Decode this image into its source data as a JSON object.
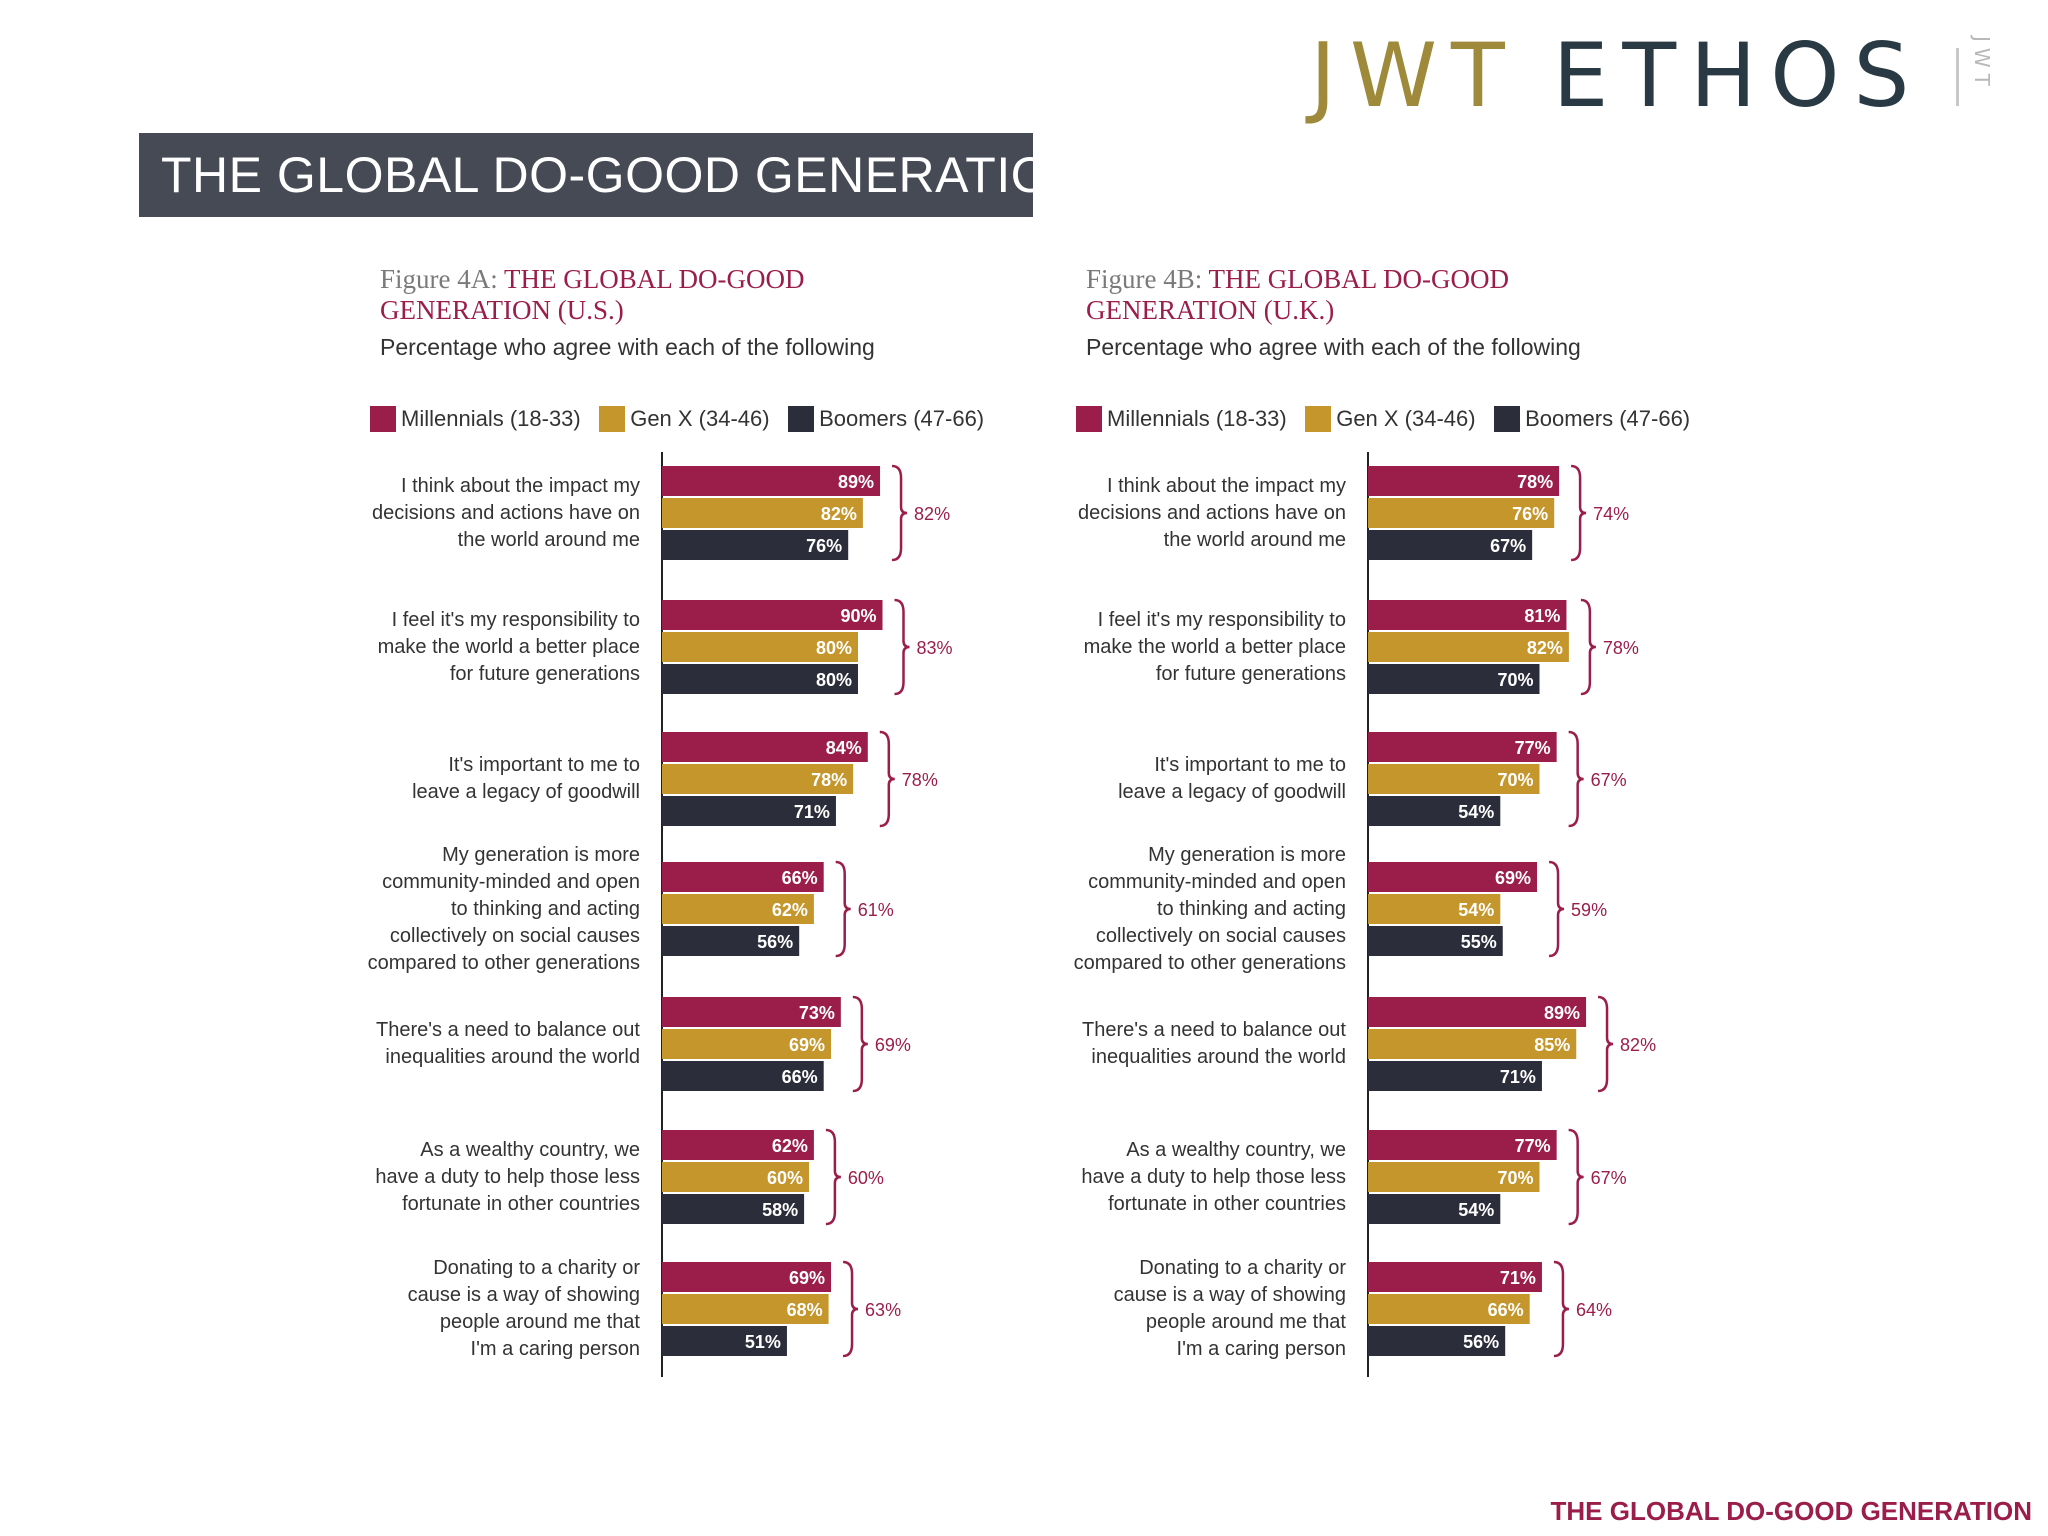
{
  "logo": {
    "main_left": "JWT",
    "main_right": "ETHOS",
    "small": "JWT"
  },
  "banner": {
    "title": "THE GLOBAL DO-GOOD GENERATION"
  },
  "footer": {
    "text": "THE GLOBAL DO-GOOD GENERATION"
  },
  "colors": {
    "millennials": "#9b1e4a",
    "genx": "#c4962c",
    "boomers": "#2b2d3a",
    "bracket": "#9b1e4a",
    "banner_bg": "#464a55"
  },
  "chart_data": [
    {
      "type": "bar",
      "figure_label": "Figure 4A:",
      "title": "THE GLOBAL DO-GOOD GENERATION (U.S.)",
      "subtitle": "Percentage who agree with each of the following",
      "orientation": "horizontal",
      "value_format": "percent",
      "xlim": [
        0,
        100
      ],
      "legend_position": "top",
      "categories": [
        [
          "I think about the impact my",
          "decisions and actions have on",
          "the world around me"
        ],
        [
          "I feel it's my responsibility to",
          "make the world a better place",
          "for future generations"
        ],
        [
          "It's important to me to",
          "leave a legacy of goodwill"
        ],
        [
          "My generation is more",
          "community-minded and open",
          "to thinking and acting",
          "collectively on social causes",
          "compared to other generations"
        ],
        [
          "There's a need to balance out",
          "inequalities around the world"
        ],
        [
          "As a wealthy country, we",
          "have a duty to help those less",
          "fortunate in other countries"
        ],
        [
          "Donating to a charity or",
          "cause is a way of showing",
          "people around me that",
          "I'm a caring person"
        ]
      ],
      "series": [
        {
          "name": "Millennials (18-33)",
          "values": [
            89,
            90,
            84,
            66,
            73,
            62,
            69
          ]
        },
        {
          "name": "Gen X (34-46)",
          "values": [
            82,
            80,
            78,
            62,
            69,
            60,
            68
          ]
        },
        {
          "name": "Boomers (47-66)",
          "values": [
            76,
            80,
            71,
            56,
            66,
            58,
            51
          ]
        }
      ],
      "totals": [
        82,
        83,
        78,
        61,
        69,
        60,
        63
      ]
    },
    {
      "type": "bar",
      "figure_label": "Figure 4B:",
      "title": "THE GLOBAL DO-GOOD GENERATION (U.K.)",
      "subtitle": "Percentage who agree with each of the following",
      "orientation": "horizontal",
      "value_format": "percent",
      "xlim": [
        0,
        100
      ],
      "legend_position": "top",
      "categories": [
        [
          "I think about the impact my",
          "decisions and actions have on",
          "the world around me"
        ],
        [
          "I feel it's my responsibility to",
          "make the world a better place",
          "for future generations"
        ],
        [
          "It's important to me to",
          "leave a legacy of goodwill"
        ],
        [
          "My generation is more",
          "community-minded and open",
          "to thinking and acting",
          "collectively on social causes",
          "compared to other generations"
        ],
        [
          "There's a need to balance out",
          "inequalities around the world"
        ],
        [
          "As a wealthy country, we",
          "have a duty to help those less",
          "fortunate in other countries"
        ],
        [
          "Donating to a charity or",
          "cause is a way of showing",
          "people around me that",
          "I'm a caring person"
        ]
      ],
      "series": [
        {
          "name": "Millennials (18-33)",
          "values": [
            78,
            81,
            77,
            69,
            89,
            77,
            71
          ]
        },
        {
          "name": "Gen X (34-46)",
          "values": [
            76,
            82,
            70,
            54,
            85,
            70,
            66
          ]
        },
        {
          "name": "Boomers (47-66)",
          "values": [
            67,
            70,
            54,
            55,
            71,
            54,
            56
          ]
        }
      ],
      "totals": [
        74,
        78,
        67,
        59,
        82,
        67,
        64
      ]
    }
  ]
}
